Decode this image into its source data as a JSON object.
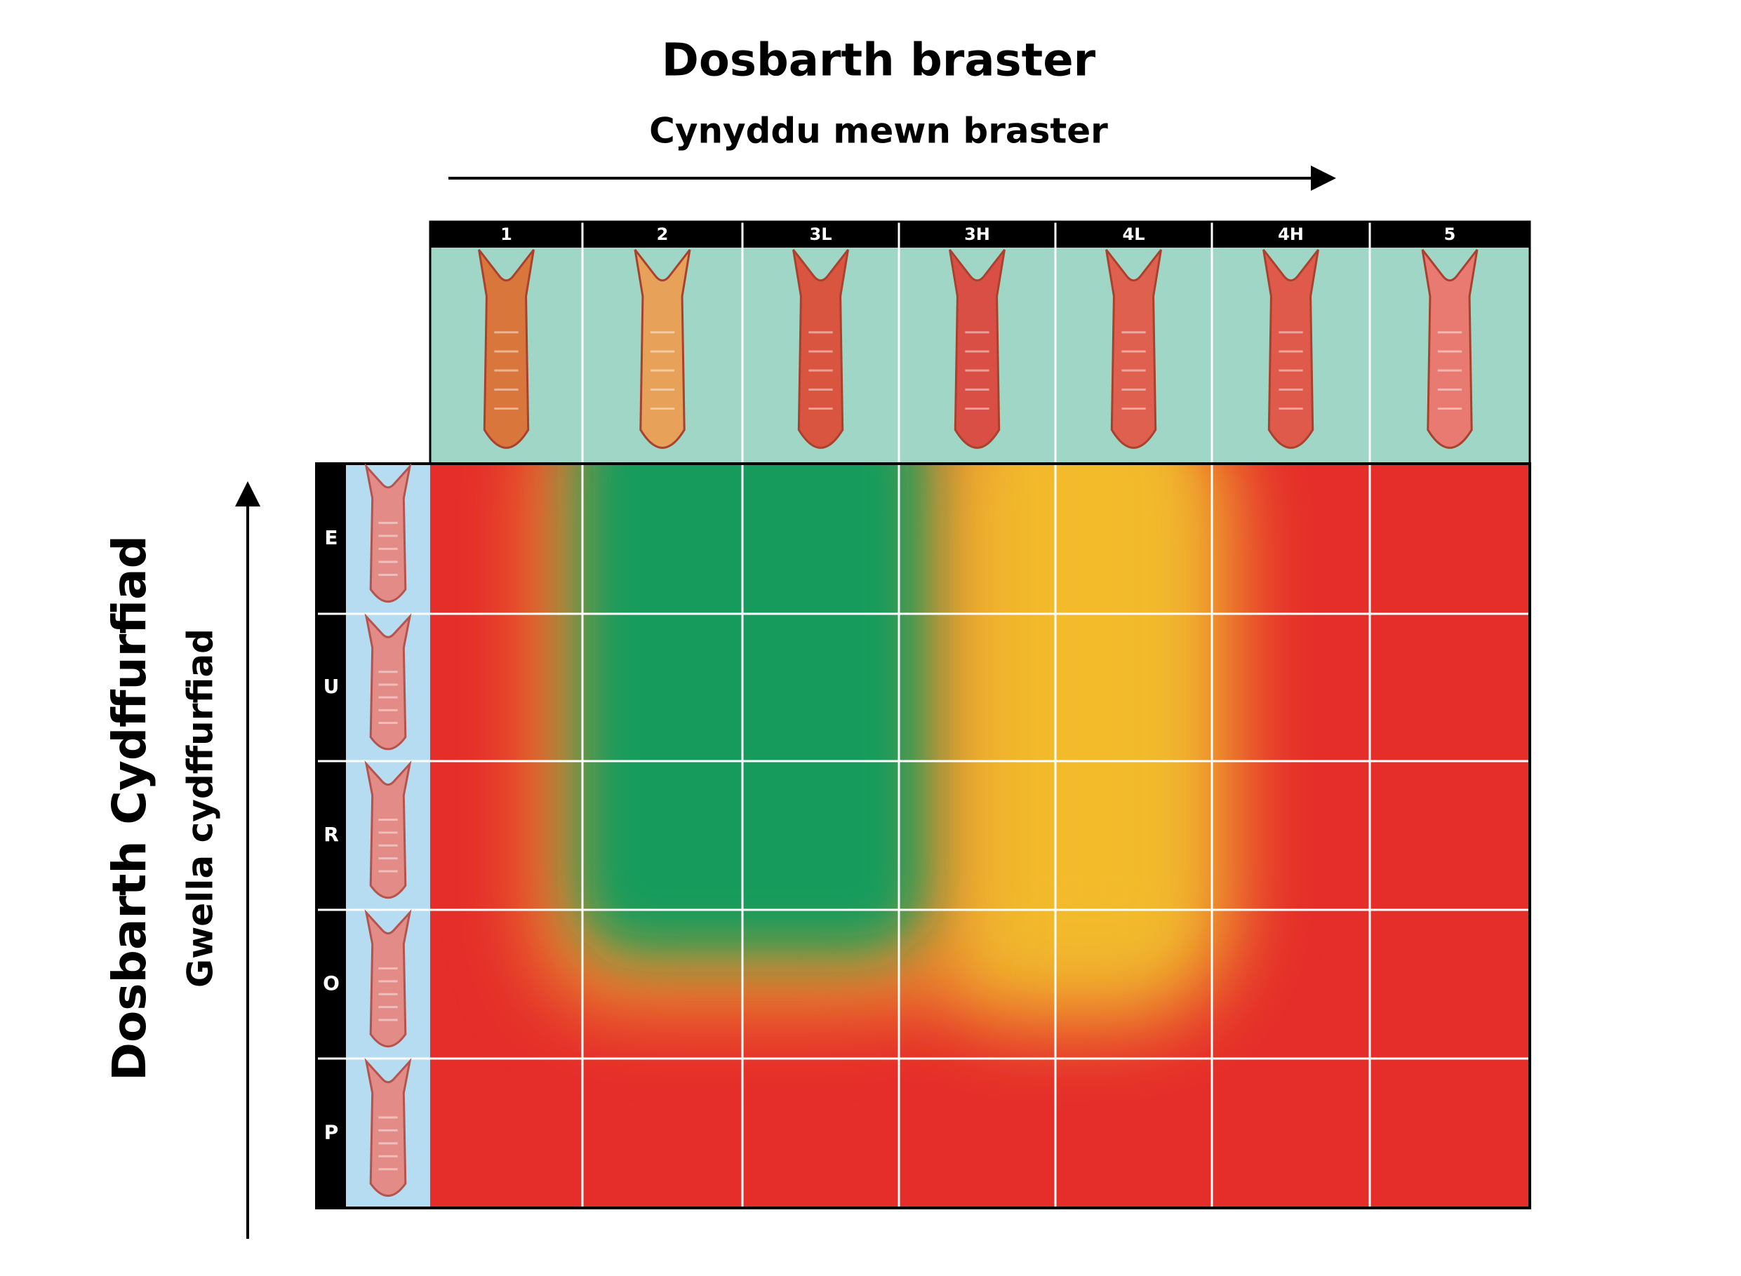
{
  "header": {
    "title": "Dosbarth braster",
    "subtitle": "Cynyddu mewn braster"
  },
  "y_axis": {
    "title": "Dosbarth Cydffurfiad",
    "subtitle": "Gwella cydffurfiad"
  },
  "columns": [
    "1",
    "2",
    "3L",
    "3H",
    "4L",
    "4H",
    "5"
  ],
  "rows": [
    "E",
    "U",
    "R",
    "O",
    "P"
  ]
}
